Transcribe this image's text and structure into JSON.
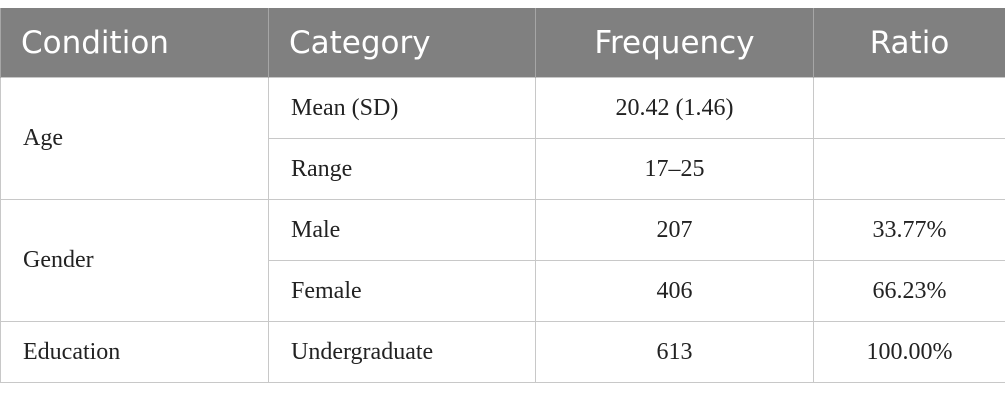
{
  "table": {
    "header": [
      "Condition",
      "Category",
      "Frequency",
      "Ratio"
    ],
    "groups": [
      {
        "condition": "Age",
        "rows": [
          [
            "Mean (SD)",
            "20.42 (1.46)"
          ],
          [
            "Range",
            "17–25"
          ]
        ]
      },
      {
        "condition": "Gender",
        "rows": [
          [
            "Male",
            "207",
            "33.77%"
          ],
          [
            "Female",
            "406",
            "66.23%"
          ]
        ]
      },
      {
        "condition": "Education",
        "rows": [
          [
            "Undergraduate",
            "613",
            "100.00%"
          ]
        ]
      }
    ]
  }
}
